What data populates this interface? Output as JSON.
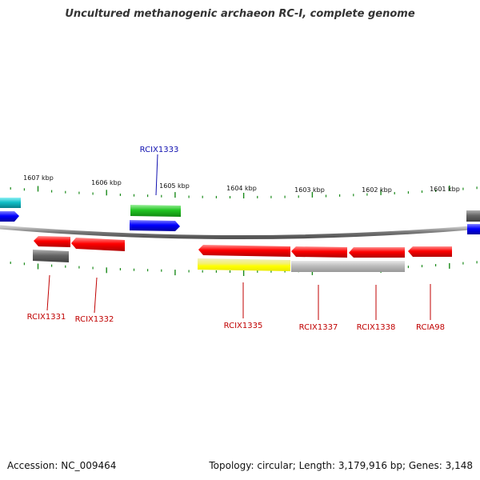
{
  "title": "Uncultured methanogenic archaeon RC-I, complete genome",
  "accession": "Accession: NC_009464",
  "genome_info": "Topology: circular; Length: 3,179,916 bp; Genes: 3,148",
  "kbp_labels": [
    "1607 kbp",
    "1606 kbp",
    "1605 kbp",
    "1604 kbp",
    "1603 kbp",
    "1602 kbp",
    "1601 kbp"
  ],
  "gene_labels": [
    {
      "name": "RCIX1333",
      "color": "#1010b0"
    },
    {
      "name": "RCIX1331",
      "color": "#c00000"
    },
    {
      "name": "RCIX1332",
      "color": "#c00000"
    },
    {
      "name": "RCIX1335",
      "color": "#c00000"
    },
    {
      "name": "RCIX1337",
      "color": "#c00000"
    },
    {
      "name": "RCIX1338",
      "color": "#c00000"
    },
    {
      "name": "RCIA98",
      "color": "#c00000"
    }
  ],
  "colors": {
    "red": "#ff0000",
    "blue": "#0000ff",
    "green": "#22c422",
    "cyan": "#10c0c8",
    "gray": "#777777",
    "light-gray": "#bdbdbd",
    "yellow": "#ffff00",
    "backbone": "#888888",
    "tick": "#1a8a1a"
  }
}
